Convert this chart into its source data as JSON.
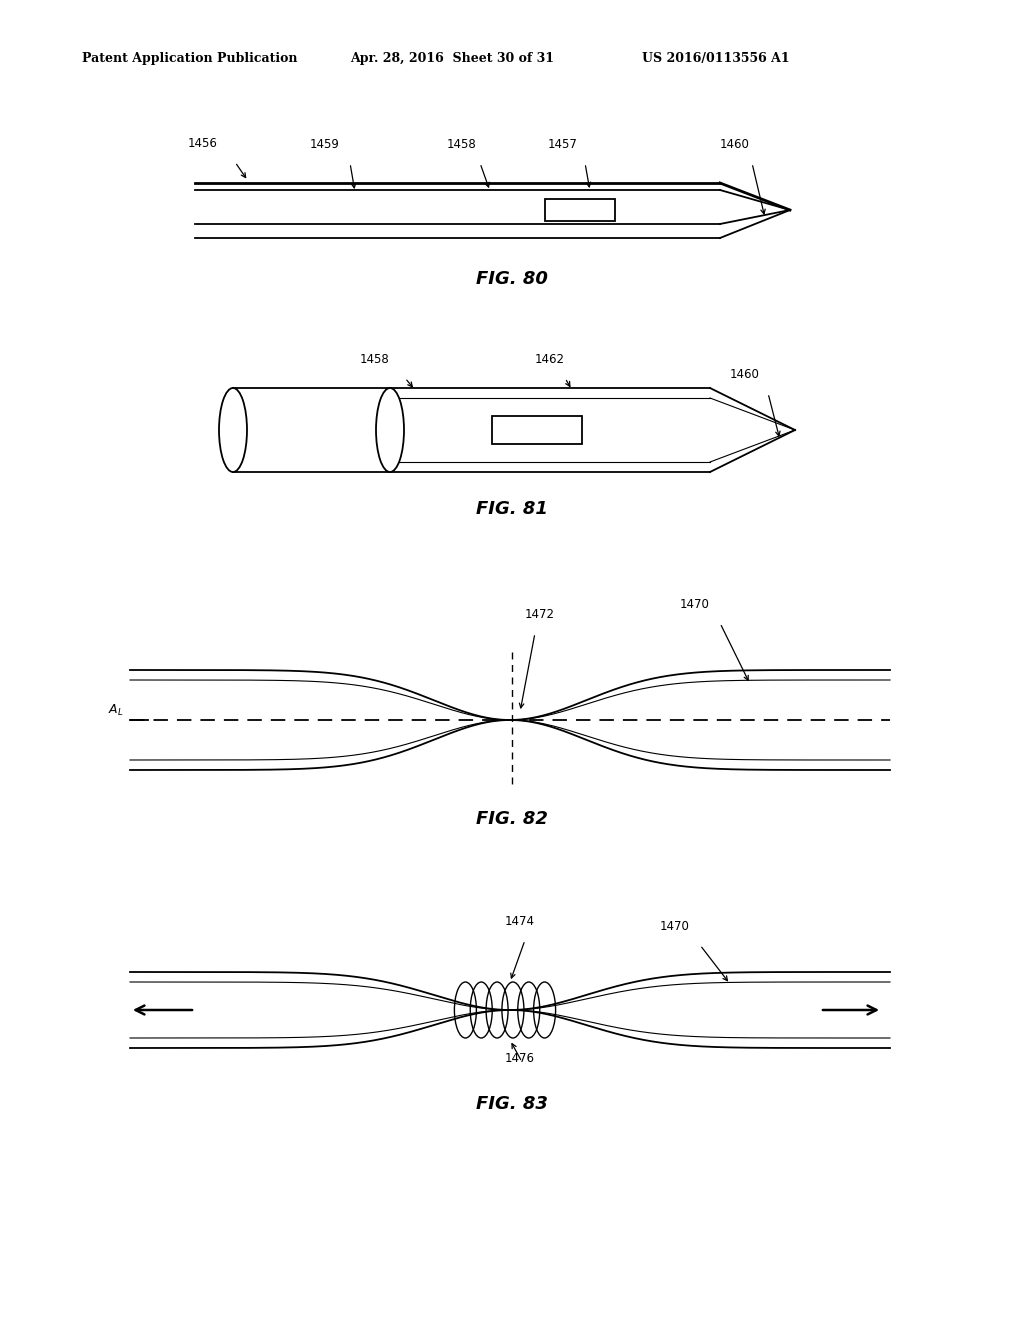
{
  "bg_color": "#ffffff",
  "header_left": "Patent Application Publication",
  "header_mid": "Apr. 28, 2016  Sheet 30 of 31",
  "header_right": "US 2016/0113556 A1",
  "fig80_label": "FIG. 80",
  "fig81_label": "FIG. 81",
  "fig82_label": "FIG. 82",
  "fig83_label": "FIG. 83",
  "line_color": "#000000",
  "lw_main": 1.3,
  "lw_thin": 0.8
}
